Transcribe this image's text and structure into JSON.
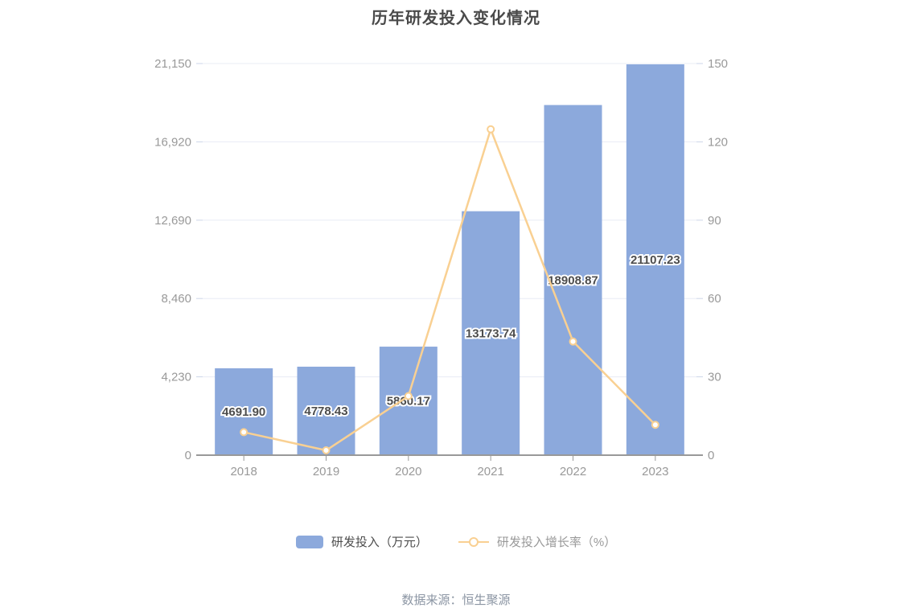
{
  "title": "历年研发投入变化情况",
  "footer": "数据来源：恒生聚源",
  "legend": {
    "items": [
      {
        "label": "研发投入（万元）",
        "type": "bar",
        "color": "#8CA9DC",
        "text_color": "#4D4D4D"
      },
      {
        "label": "研发投入增长率（%）",
        "type": "line",
        "color": "#F9D092",
        "text_color": "#999999"
      }
    ]
  },
  "colors": {
    "grid": "#E8ECF5",
    "axis": "#999999",
    "tick_dash": "#CCD5E8",
    "tick_text": "#999999",
    "bar_label_text": "#4D4D4D",
    "bar_label_stroke": "#FFFFFF",
    "title": "#4A4A4A",
    "footer": "#8B95A3",
    "marker_fill": "#FFFFFF"
  },
  "chart_data": {
    "type": "bar",
    "subtype": "bar-line-combo",
    "title": "历年研发投入变化情况",
    "categories": [
      "2018",
      "2019",
      "2020",
      "2021",
      "2022",
      "2023"
    ],
    "series": [
      {
        "name": "研发投入（万元）",
        "type": "bar",
        "axis": "left",
        "color": "#8CA9DC",
        "values": [
          4691.9,
          4778.43,
          5860.17,
          13173.74,
          18908.87,
          21107.23
        ],
        "labels": [
          "4691.90",
          "4778.43",
          "5860.17",
          "13173.74",
          "18908.87",
          "21107.23"
        ]
      },
      {
        "name": "研发投入增长率（%）",
        "type": "line",
        "axis": "right",
        "color": "#F9D092",
        "values": [
          8.8,
          1.84,
          22.64,
          124.81,
          43.53,
          11.63
        ]
      }
    ],
    "left_axis": {
      "ticks": [
        0,
        4230,
        8460,
        12690,
        16920,
        21150
      ],
      "tick_labels": [
        "0",
        "4,230",
        "8,460",
        "12,690",
        "16,920",
        "21,150"
      ],
      "min": 0,
      "max": 21150
    },
    "right_axis": {
      "ticks": [
        0,
        30,
        60,
        90,
        120,
        150
      ],
      "tick_labels": [
        "0",
        "30",
        "60",
        "90",
        "120",
        "150"
      ],
      "min": 0,
      "max": 150
    },
    "grid": true,
    "legend_position": "bottom",
    "xlabel": "",
    "ylabel": ""
  }
}
